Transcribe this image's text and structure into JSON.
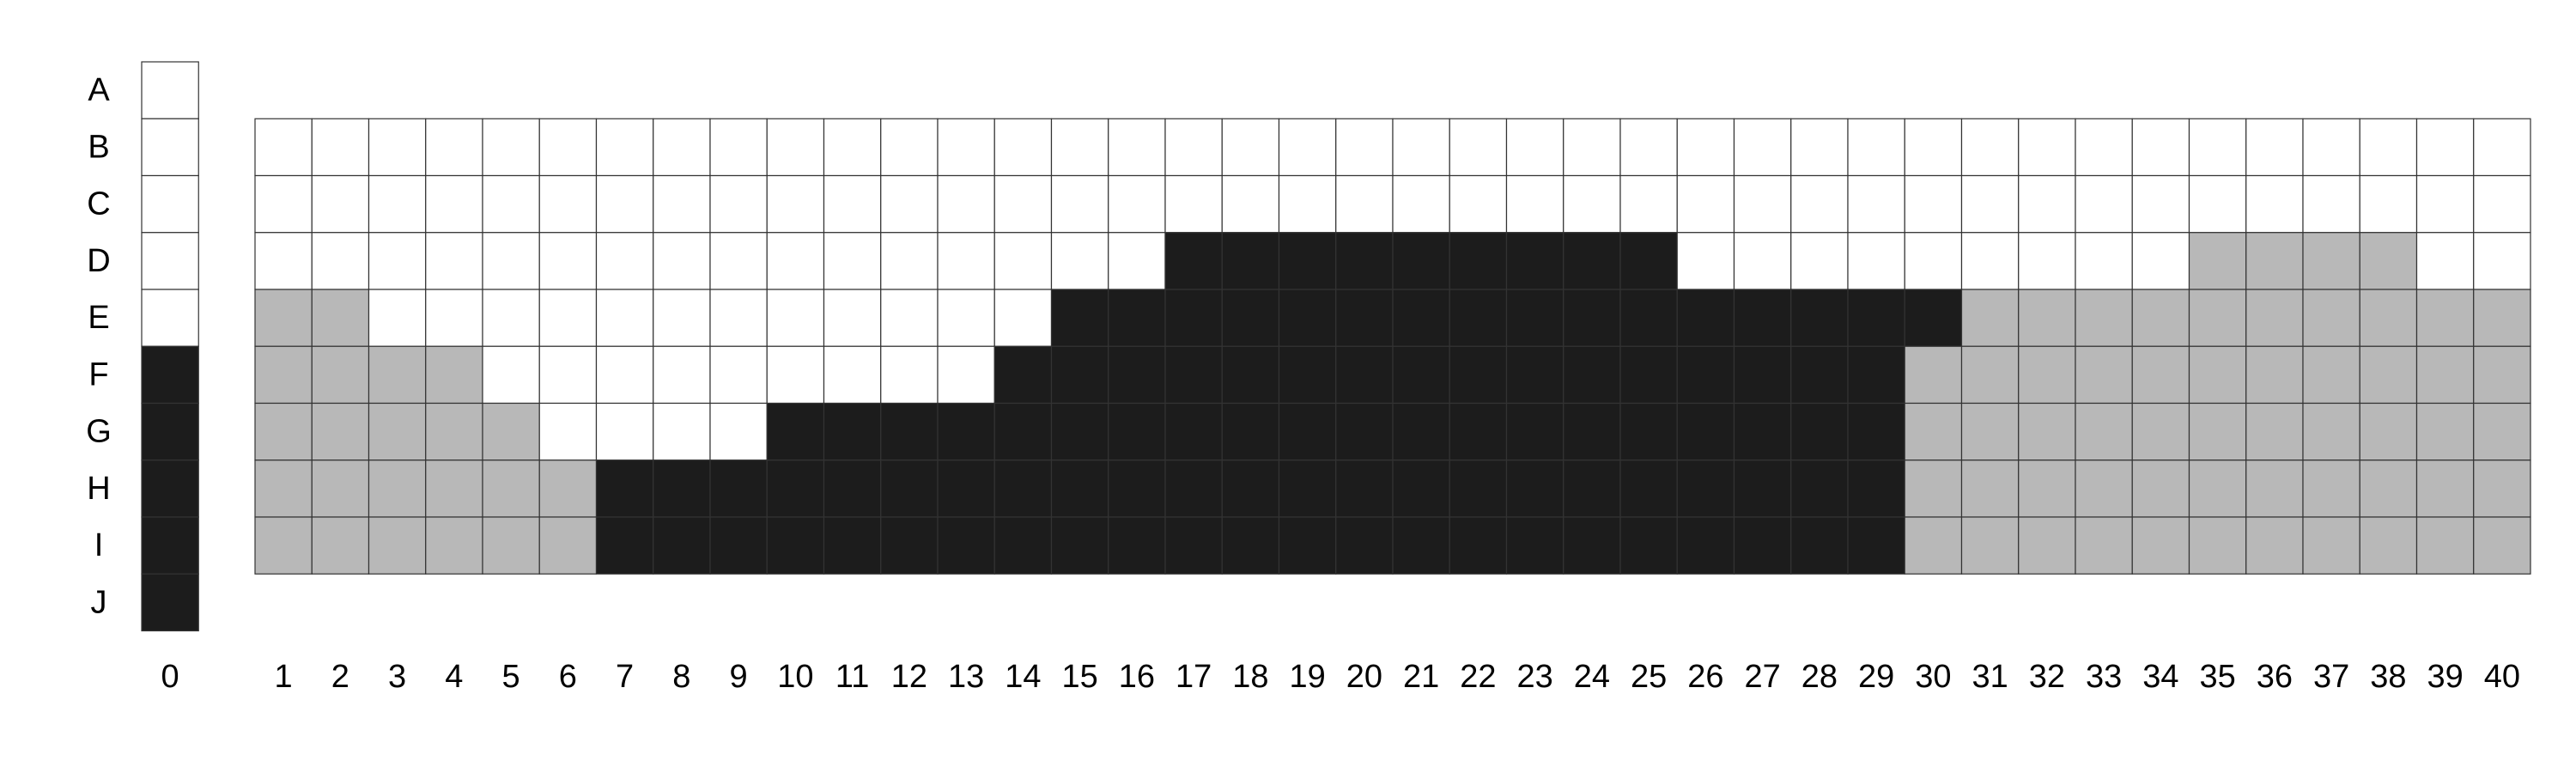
{
  "chart_data": {
    "type": "heatmap",
    "title": "",
    "xlabel": "",
    "ylabel": "",
    "rows": [
      "A",
      "B",
      "C",
      "D",
      "E",
      "F",
      "G",
      "H",
      "I",
      "J"
    ],
    "legend_column": {
      "label": "0",
      "values": [
        0,
        0,
        0,
        0,
        0,
        2,
        2,
        2,
        2,
        2
      ]
    },
    "grid": {
      "columns": [
        1,
        2,
        3,
        4,
        5,
        6,
        7,
        8,
        9,
        10,
        11,
        12,
        13,
        14,
        15,
        16,
        17,
        18,
        19,
        20,
        21,
        22,
        23,
        24,
        25,
        26,
        27,
        28,
        29,
        30,
        31,
        32,
        33,
        34,
        35,
        36,
        37,
        38,
        39,
        40
      ],
      "row_labels": [
        "B",
        "C",
        "D",
        "E",
        "F",
        "G",
        "H",
        "I"
      ],
      "values": [
        [
          0,
          0,
          0,
          0,
          0,
          0,
          0,
          0,
          0,
          0,
          0,
          0,
          0,
          0,
          0,
          0,
          0,
          0,
          0,
          0,
          0,
          0,
          0,
          0,
          0,
          0,
          0,
          0,
          0,
          0,
          0,
          0,
          0,
          0,
          0,
          0,
          0,
          0,
          0,
          0
        ],
        [
          0,
          0,
          0,
          0,
          0,
          0,
          0,
          0,
          0,
          0,
          0,
          0,
          0,
          0,
          0,
          0,
          0,
          0,
          0,
          0,
          0,
          0,
          0,
          0,
          0,
          0,
          0,
          0,
          0,
          0,
          0,
          0,
          0,
          0,
          0,
          0,
          0,
          0,
          0,
          0
        ],
        [
          0,
          0,
          0,
          0,
          0,
          0,
          0,
          0,
          0,
          0,
          0,
          0,
          0,
          0,
          0,
          0,
          2,
          2,
          2,
          2,
          2,
          2,
          2,
          2,
          2,
          0,
          0,
          0,
          0,
          0,
          0,
          0,
          0,
          0,
          1,
          1,
          1,
          1,
          0,
          0
        ],
        [
          1,
          1,
          0,
          0,
          0,
          0,
          0,
          0,
          0,
          0,
          0,
          0,
          0,
          0,
          2,
          2,
          2,
          2,
          2,
          2,
          2,
          2,
          2,
          2,
          2,
          2,
          2,
          2,
          2,
          2,
          1,
          1,
          1,
          1,
          1,
          1,
          1,
          1,
          1,
          1
        ],
        [
          1,
          1,
          1,
          1,
          0,
          0,
          0,
          0,
          0,
          0,
          0,
          0,
          0,
          2,
          2,
          2,
          2,
          2,
          2,
          2,
          2,
          2,
          2,
          2,
          2,
          2,
          2,
          2,
          2,
          1,
          1,
          1,
          1,
          1,
          1,
          1,
          1,
          1,
          1,
          1
        ],
        [
          1,
          1,
          1,
          1,
          1,
          0,
          0,
          0,
          0,
          2,
          2,
          2,
          2,
          2,
          2,
          2,
          2,
          2,
          2,
          2,
          2,
          2,
          2,
          2,
          2,
          2,
          2,
          2,
          2,
          1,
          1,
          1,
          1,
          1,
          1,
          1,
          1,
          1,
          1,
          1
        ],
        [
          1,
          1,
          1,
          1,
          1,
          1,
          2,
          2,
          2,
          2,
          2,
          2,
          2,
          2,
          2,
          2,
          2,
          2,
          2,
          2,
          2,
          2,
          2,
          2,
          2,
          2,
          2,
          2,
          2,
          1,
          1,
          1,
          1,
          1,
          1,
          1,
          1,
          1,
          1,
          1
        ],
        [
          1,
          1,
          1,
          1,
          1,
          1,
          2,
          2,
          2,
          2,
          2,
          2,
          2,
          2,
          2,
          2,
          2,
          2,
          2,
          2,
          2,
          2,
          2,
          2,
          2,
          2,
          2,
          2,
          2,
          1,
          1,
          1,
          1,
          1,
          1,
          1,
          1,
          1,
          1,
          1
        ]
      ]
    },
    "colors": {
      "0": "#ffffff",
      "1": "#b8b8b8",
      "2": "#1c1c1c"
    },
    "legend": "none"
  }
}
